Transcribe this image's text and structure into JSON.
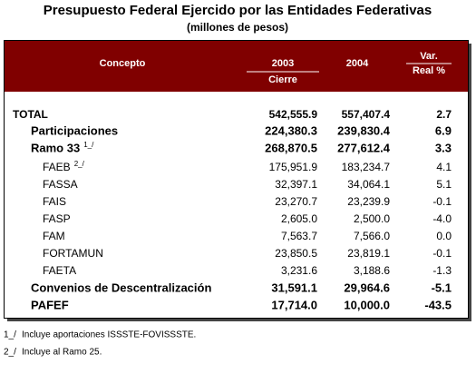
{
  "title": "Presupuesto Federal Ejercido por las Entidades Federativas",
  "subtitle": "(millones de pesos)",
  "table": {
    "headers": {
      "concept": "Concepto",
      "year_a": "2003",
      "year_a_sub": "Cierre",
      "year_b": "2004",
      "var_1": "Var.",
      "var_2": "Real %"
    },
    "total": {
      "concept": "TOTAL",
      "a": "542,555.9",
      "b": "557,407.4",
      "var": "2.7"
    },
    "rows": [
      {
        "concept": "Participaciones",
        "a": "224,380.3",
        "b": "239,830.4",
        "var": "6.9"
      },
      {
        "concept": "Ramo 33",
        "note": "1_/",
        "a": "268,870.5",
        "b": "277,612.4",
        "var": "3.3",
        "items": [
          {
            "concept": "FAEB",
            "note": "2_/",
            "a": "175,951.9",
            "b": "183,234.7",
            "var": "4.1"
          },
          {
            "concept": "FASSA",
            "a": "32,397.1",
            "b": "34,064.1",
            "var": "5.1"
          },
          {
            "concept": "FAIS",
            "a": "23,270.7",
            "b": "23,239.9",
            "var": "-0.1"
          },
          {
            "concept": "FASP",
            "a": "2,605.0",
            "b": "2,500.0",
            "var": "-4.0"
          },
          {
            "concept": "FAM",
            "a": "7,563.7",
            "b": "7,566.0",
            "var": "0.0"
          },
          {
            "concept": "FORTAMUN",
            "a": "23,850.5",
            "b": "23,819.1",
            "var": "-0.1"
          },
          {
            "concept": "FAETA",
            "a": "3,231.6",
            "b": "3,188.6",
            "var": "-1.3"
          }
        ]
      },
      {
        "concept": "Convenios de Descentralización",
        "a": "31,591.1",
        "b": "29,964.6",
        "var": "-5.1"
      },
      {
        "concept": "PAFEF",
        "a": "17,714.0",
        "b": "10,000.0",
        "var": "-43.5"
      }
    ]
  },
  "footnotes": [
    {
      "mark": "1_/",
      "text": "Incluye aportaciones ISSSTE-FOVISSSTE."
    },
    {
      "mark": "2_/",
      "text": "Incluye al Ramo 25."
    }
  ]
}
